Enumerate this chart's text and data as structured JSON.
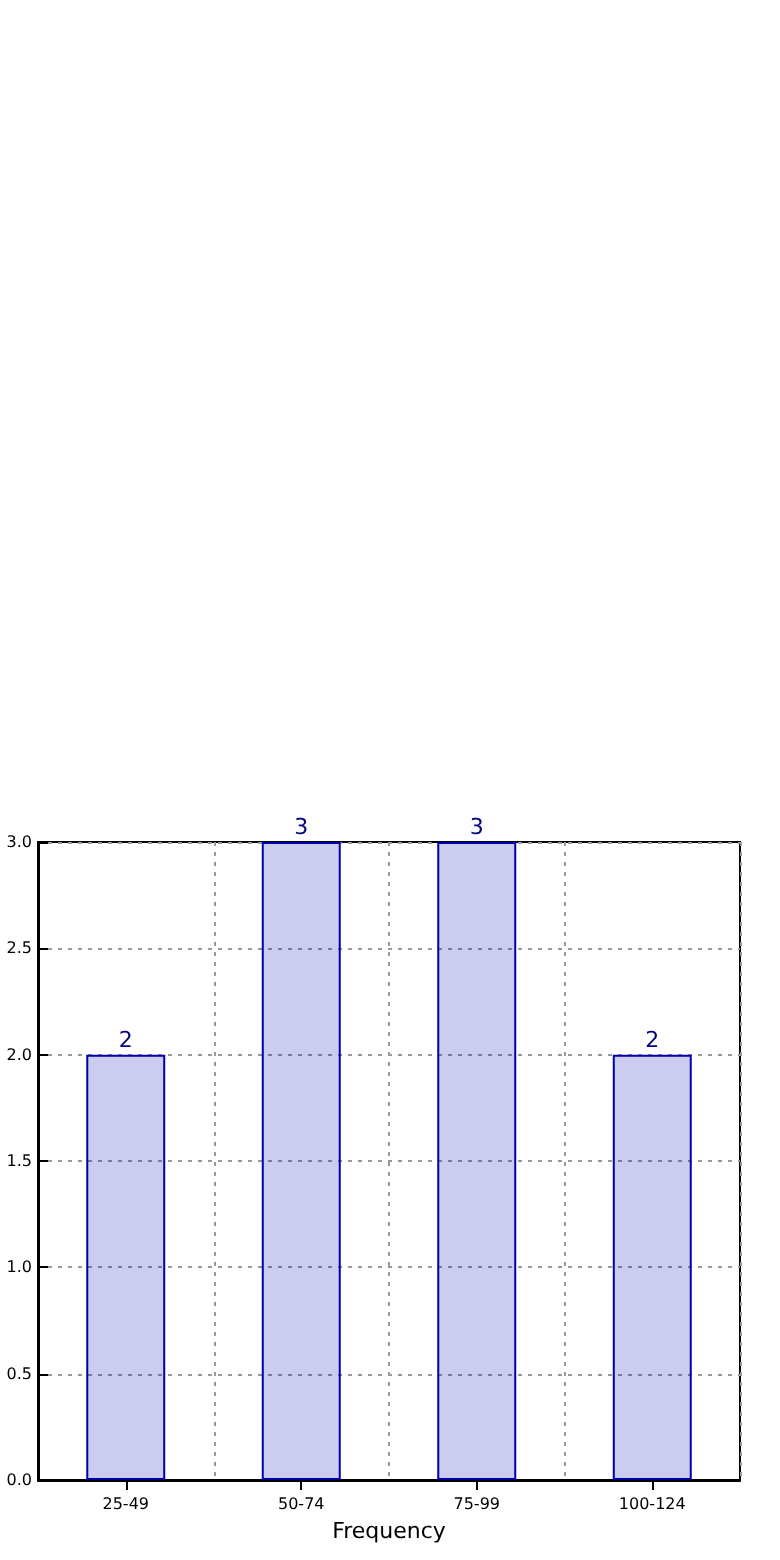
{
  "chart_data": {
    "type": "bar",
    "xlabel": "Frequency",
    "categories": [
      "25-49",
      "50-74",
      "75-99",
      "100-124"
    ],
    "values": [
      2,
      3,
      3,
      2
    ],
    "color": "#0000aa",
    "ylim": [
      0,
      3
    ],
    "yticks": [
      {
        "value": 0,
        "label": "0.0"
      },
      {
        "value": 0.5,
        "label": "0.5"
      },
      {
        "value": 1,
        "label": "1.0"
      },
      {
        "value": 1.5,
        "label": "1.5"
      },
      {
        "value": 2,
        "label": "2.0"
      },
      {
        "value": 2.5,
        "label": "2.5"
      },
      {
        "value": 3,
        "label": "3.0"
      }
    ],
    "grid": true,
    "data_labels": true
  }
}
